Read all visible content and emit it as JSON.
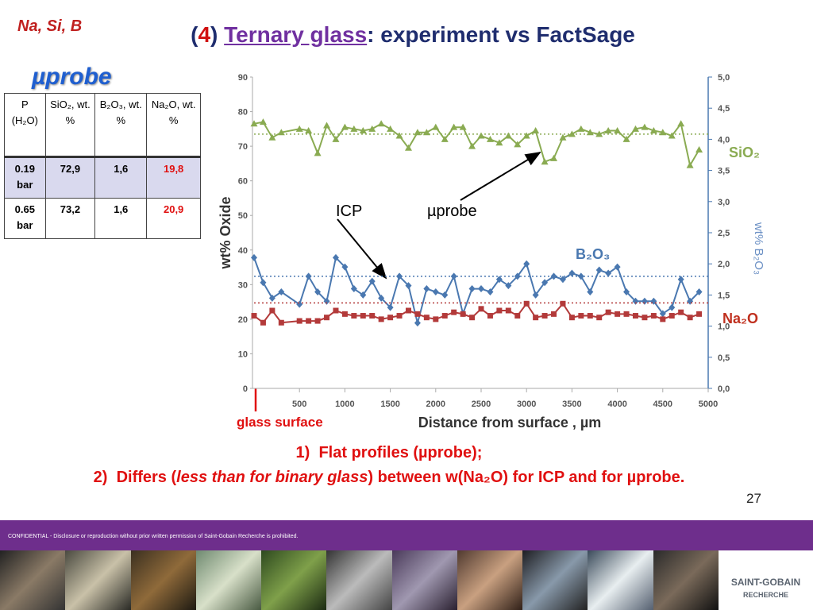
{
  "header": {
    "tag": "Na, Si, B",
    "title_parts": [
      "(",
      "4",
      ")",
      "Ternary glass",
      ": experiment vs FactSage"
    ],
    "method": "µprobe"
  },
  "table": {
    "header": [
      "P (H₂O)",
      "SiO₂, wt. %",
      "B₂O₃, wt. %",
      "Na₂O, wt. %"
    ],
    "rows": [
      [
        "0.19 bar",
        "72,9",
        "1,6",
        "19,8"
      ],
      [
        "0.65 bar",
        "73,2",
        "1,6",
        "20,9"
      ]
    ]
  },
  "chart_data": {
    "type": "line",
    "x_label": "Distance from surface , µm",
    "y_label": "wt% Oxide",
    "y2_label": "wt% B₂O₃",
    "xlim": [
      0,
      5000
    ],
    "xticks": [
      500,
      1000,
      1500,
      2000,
      2500,
      3000,
      3500,
      4000,
      4500,
      5000
    ],
    "ylim": [
      0,
      90
    ],
    "yticks": [
      0,
      10,
      20,
      30,
      40,
      50,
      60,
      70,
      80,
      90
    ],
    "y2lim": [
      0,
      5
    ],
    "y2ticks": [
      {
        "value": 0,
        "label": "0,0"
      },
      {
        "value": 0.5,
        "label": "0,5"
      },
      {
        "value": 1,
        "label": "1,0"
      },
      {
        "value": 1.5,
        "label": "1,5"
      },
      {
        "value": 2,
        "label": "2,0"
      },
      {
        "value": 2.5,
        "label": "2,5"
      },
      {
        "value": 3,
        "label": "3,0"
      },
      {
        "value": 3.5,
        "label": "3,5"
      },
      {
        "value": 4,
        "label": "4,0"
      },
      {
        "value": 4.5,
        "label": "4,5"
      },
      {
        "value": 5,
        "label": "5,0"
      }
    ],
    "x": [
      0,
      100,
      200,
      300,
      500,
      600,
      700,
      800,
      900,
      1000,
      1100,
      1200,
      1300,
      1400,
      1500,
      1600,
      1700,
      1800,
      1900,
      2000,
      2100,
      2200,
      2300,
      2400,
      2500,
      2600,
      2700,
      2800,
      2900,
      3000,
      3100,
      3200,
      3300,
      3400,
      3500,
      3600,
      3700,
      3800,
      3900,
      4000,
      4100,
      4200,
      4300,
      4400,
      4500,
      4600,
      4700,
      4800,
      4900
    ],
    "series": [
      {
        "name": "SiO₂",
        "color": "#8aab52",
        "marker": "triangle",
        "icp": 73.5,
        "values": [
          76.5,
          77,
          72.5,
          74,
          75,
          74.5,
          68,
          76,
          72,
          75.5,
          75,
          74.5,
          75,
          76.5,
          75,
          73,
          69.5,
          74,
          74,
          75.5,
          72,
          75.5,
          75.5,
          70,
          73,
          72,
          71,
          73,
          70.5,
          73,
          74.5,
          65.5,
          66.5,
          72.5,
          73.5,
          75,
          74,
          73.5,
          74.5,
          74.5,
          72,
          75,
          75.5,
          74.5,
          74,
          73,
          76.5,
          64.5,
          69
        ]
      },
      {
        "name": "B₂O₃",
        "color": "#4a78b0",
        "marker": "diamond",
        "axis": "y2",
        "icp": 1.8,
        "values": [
          2.1,
          1.7,
          1.45,
          1.55,
          1.35,
          1.8,
          1.55,
          1.4,
          2.1,
          1.95,
          1.6,
          1.5,
          1.72,
          1.45,
          1.3,
          1.8,
          1.65,
          1.05,
          1.6,
          1.55,
          1.5,
          1.8,
          1.2,
          1.6,
          1.6,
          1.55,
          1.75,
          1.65,
          1.8,
          2.0,
          1.5,
          1.7,
          1.8,
          1.75,
          1.85,
          1.8,
          1.55,
          1.9,
          1.85,
          1.95,
          1.55,
          1.4,
          1.4,
          1.4,
          1.2,
          1.3,
          1.75,
          1.4,
          1.55
        ]
      },
      {
        "name": "Na₂O",
        "color": "#b33a3a",
        "marker": "square",
        "icp": 24.7,
        "values": [
          21,
          19,
          22.5,
          19,
          19.5,
          19.5,
          19.5,
          20.5,
          22.5,
          21.5,
          21,
          21,
          21,
          20,
          20.5,
          21,
          22.5,
          21.5,
          20.5,
          20,
          21,
          22,
          21.5,
          20.5,
          23,
          21,
          22.5,
          22.5,
          21,
          24.5,
          20.5,
          21,
          21.5,
          24.5,
          20.5,
          21,
          21,
          20.5,
          22,
          21.5,
          21.5,
          21,
          20.5,
          21,
          20,
          21,
          22,
          20.5,
          21.5
        ]
      }
    ],
    "annotations": {
      "icp": "ICP",
      "probe": "µprobe",
      "surface": "glass surface"
    }
  },
  "conclusions": [
    {
      "number": "1)",
      "parts": [
        "Flat profiles (µprobe);"
      ]
    },
    {
      "number": "2)",
      "parts": [
        "Differs (",
        "less than for binary glass",
        ") between w(Na₂O) for ICP and for µprobe."
      ]
    }
  ],
  "page_number": "27",
  "footer": {
    "confidential": "CONFIDENTIAL  -  Disclosure or reproduction without prior written permission of Saint-Gobain Recherche is prohibited.",
    "logo": "SAINT-GOBAIN",
    "logo_sub": "RECHERCHE"
  }
}
